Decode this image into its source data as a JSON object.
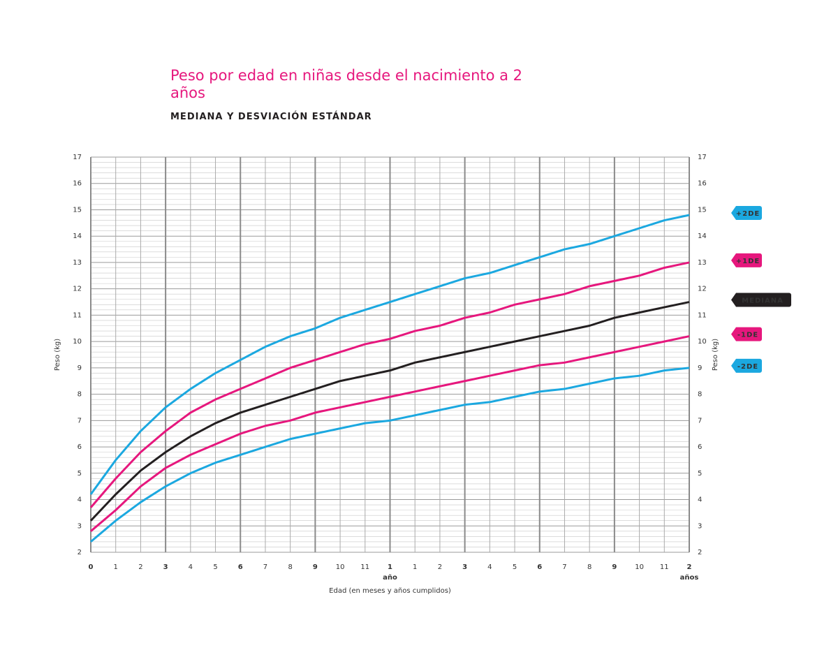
{
  "chart_data": {
    "type": "line",
    "title": "Peso por edad en niñas desde el nacimiento a 2 años",
    "subtitle": "MEDIANA Y DESVIACIÓN ESTÁNDAR",
    "xlabel": "Edad (en meses y años cumplidos)",
    "ylabel": "Peso (kg)",
    "x": [
      0,
      1,
      2,
      3,
      4,
      5,
      6,
      7,
      8,
      9,
      10,
      11,
      12,
      13,
      14,
      15,
      16,
      17,
      18,
      19,
      20,
      21,
      22,
      23,
      24
    ],
    "xlim": [
      0,
      24
    ],
    "xticks": [
      0,
      1,
      2,
      3,
      4,
      5,
      6,
      7,
      8,
      9,
      10,
      11,
      {
        "value": 12,
        "label": "1"
      },
      {
        "value": 13,
        "label": "1"
      },
      {
        "value": 14,
        "label": "2"
      },
      {
        "value": 15,
        "label": "3"
      },
      {
        "value": 16,
        "label": "4"
      },
      {
        "value": 17,
        "label": "5"
      },
      {
        "value": 18,
        "label": "6"
      },
      {
        "value": 19,
        "label": "7"
      },
      {
        "value": 20,
        "label": "8"
      },
      {
        "value": 21,
        "label": "9"
      },
      {
        "value": 22,
        "label": "10"
      },
      {
        "value": 23,
        "label": "11"
      },
      {
        "value": 24,
        "label": "2"
      }
    ],
    "annotations": [
      {
        "text": "año",
        "x": 12
      },
      {
        "text": "años",
        "x": 24
      }
    ],
    "ylim": [
      2,
      17
    ],
    "yticks": [
      2,
      3,
      4,
      5,
      6,
      7,
      8,
      9,
      10,
      11,
      12,
      13,
      14,
      15,
      16,
      17
    ],
    "grid": true,
    "series": [
      {
        "name": "+2DE",
        "color": "#1ba8e0",
        "values": [
          4.2,
          5.5,
          6.6,
          7.5,
          8.2,
          8.8,
          9.3,
          9.8,
          10.2,
          10.5,
          10.9,
          11.2,
          11.5,
          11.8,
          12.1,
          12.4,
          12.6,
          12.9,
          13.2,
          13.5,
          13.7,
          14.0,
          14.3,
          14.6,
          14.8
        ]
      },
      {
        "name": "+1DE",
        "color": "#e6177d",
        "values": [
          3.7,
          4.8,
          5.8,
          6.6,
          7.3,
          7.8,
          8.2,
          8.6,
          9.0,
          9.3,
          9.6,
          9.9,
          10.1,
          10.4,
          10.6,
          10.9,
          11.1,
          11.4,
          11.6,
          11.8,
          12.1,
          12.3,
          12.5,
          12.8,
          13.0
        ]
      },
      {
        "name": "MEDIANA",
        "color": "#231f20",
        "values": [
          3.2,
          4.2,
          5.1,
          5.8,
          6.4,
          6.9,
          7.3,
          7.6,
          7.9,
          8.2,
          8.5,
          8.7,
          8.9,
          9.2,
          9.4,
          9.6,
          9.8,
          10.0,
          10.2,
          10.4,
          10.6,
          10.9,
          11.1,
          11.3,
          11.5
        ]
      },
      {
        "name": "-1DE",
        "color": "#e6177d",
        "values": [
          2.8,
          3.6,
          4.5,
          5.2,
          5.7,
          6.1,
          6.5,
          6.8,
          7.0,
          7.3,
          7.5,
          7.7,
          7.9,
          8.1,
          8.3,
          8.5,
          8.7,
          8.9,
          9.1,
          9.2,
          9.4,
          9.6,
          9.8,
          10.0,
          10.2
        ]
      },
      {
        "name": "-2DE",
        "color": "#1ba8e0",
        "values": [
          2.4,
          3.2,
          3.9,
          4.5,
          5.0,
          5.4,
          5.7,
          6.0,
          6.3,
          6.5,
          6.7,
          6.9,
          7.0,
          7.2,
          7.4,
          7.6,
          7.7,
          7.9,
          8.1,
          8.2,
          8.4,
          8.6,
          8.7,
          8.9,
          9.0
        ]
      }
    ]
  }
}
